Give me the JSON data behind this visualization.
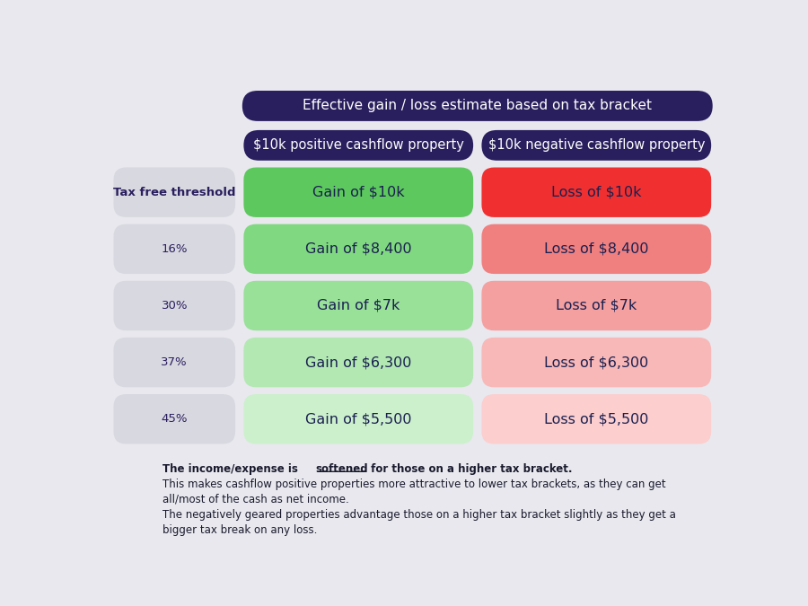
{
  "title": "Effective gain / loss estimate based on tax bracket",
  "col1_header": "$10k positive cashflow property",
  "col2_header": "$10k negative cashflow property",
  "rows": [
    {
      "label": "Tax free threshold",
      "gain": "Gain of $10k",
      "loss": "Loss of $10k"
    },
    {
      "label": "16%",
      "gain": "Gain of $8,400",
      "loss": "Loss of $8,400"
    },
    {
      "label": "30%",
      "gain": "Gain of $7k",
      "loss": "Loss of $7k"
    },
    {
      "label": "37%",
      "gain": "Gain of $6,300",
      "loss": "Loss of $6,300"
    },
    {
      "label": "45%",
      "gain": "Gain of $5,500",
      "loss": "Loss of $5,500"
    }
  ],
  "gain_colors": [
    "#5dc85d",
    "#80d880",
    "#99e099",
    "#b3e8b3",
    "#ccf0cc"
  ],
  "loss_colors": [
    "#f03030",
    "#f08080",
    "#f4a0a0",
    "#f8b8b8",
    "#fccece"
  ],
  "label_bg": "#d8d8e0",
  "title_bg": "#2a1f5e",
  "header_bg": "#2a1f5e",
  "title_color": "#ffffff",
  "header_color": "#ffffff",
  "label_text_color": "#2a1f5e",
  "gain_text_color": "#1a2050",
  "loss_text_color": "#1a2050",
  "background_color": "#e8e8ee",
  "footnote_line2": "This makes cashflow positive properties more attractive to lower tax brackets, as they can get",
  "footnote_line3": "all/most of the cash as net income.",
  "footnote_line4": "The negatively geared properties advantage those on a higher tax bracket slightly as they get a",
  "footnote_line5": "bigger tax break on any loss."
}
